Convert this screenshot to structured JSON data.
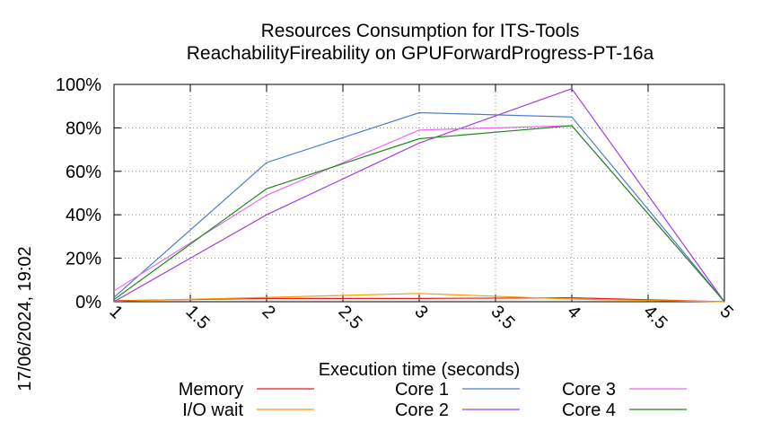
{
  "chart_data": {
    "type": "line",
    "title_lines": [
      "Resources Consumption for ITS-Tools",
      "ReachabilityFireability on GPUForwardProgress-PT-16a"
    ],
    "xlabel": "Execution time (seconds)",
    "ylabel": "",
    "side_label": "17/06/2024, 19:02",
    "xlim": [
      1,
      5
    ],
    "ylim": [
      0,
      100
    ],
    "xticks": [
      "1",
      "1.5",
      "2",
      "2.5",
      "3",
      "3.5",
      "4",
      "4.5",
      "5"
    ],
    "yticks": [
      "0%",
      "20%",
      "40%",
      "60%",
      "80%",
      "100%"
    ],
    "grid": true,
    "legend_position": "bottom",
    "x": [
      1,
      2,
      3,
      4,
      5
    ],
    "series": [
      {
        "name": "Memory",
        "color": "#e41a1c",
        "values": [
          0.5,
          1.5,
          1.5,
          1.8,
          0
        ]
      },
      {
        "name": "I/O wait",
        "color": "#ff9900",
        "values": [
          0.3,
          2.0,
          3.8,
          1.2,
          0
        ]
      },
      {
        "name": "Core 1",
        "color": "#4a7cc9",
        "values": [
          2,
          64,
          87,
          85,
          0
        ]
      },
      {
        "name": "Core 2",
        "color": "#a040e0",
        "values": [
          0,
          40,
          73,
          98,
          0
        ]
      },
      {
        "name": "Core 3",
        "color": "#ee66ee",
        "values": [
          5,
          49,
          79,
          81,
          0
        ]
      },
      {
        "name": "Core 4",
        "color": "#1e8a1e",
        "values": [
          1,
          52,
          75,
          81,
          0
        ]
      }
    ]
  }
}
